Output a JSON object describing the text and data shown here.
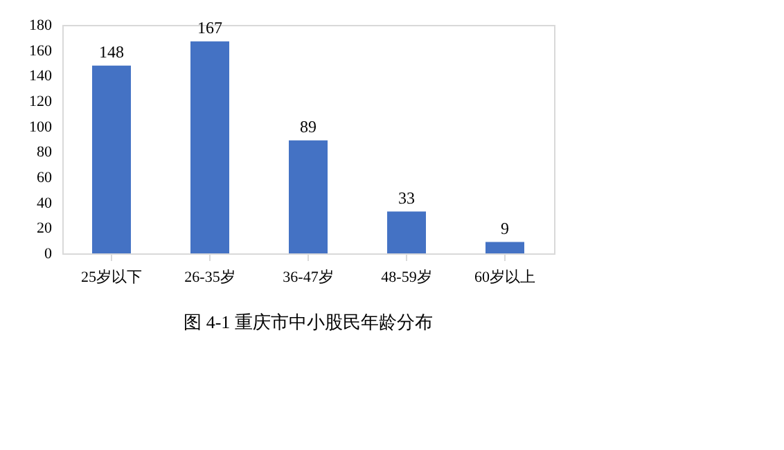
{
  "chart_data": {
    "type": "bar",
    "title": "图 4-1  重庆市中小股民年龄分布",
    "categories": [
      "25岁以下",
      "26-35岁",
      "36-47岁",
      "48-59岁",
      "60岁以上"
    ],
    "values": [
      148,
      167,
      89,
      33,
      9
    ],
    "color": "#4472c4",
    "ylim": [
      0,
      180
    ],
    "yticks": [
      0,
      20,
      40,
      60,
      80,
      100,
      120,
      140,
      160,
      180
    ],
    "grid": false,
    "data_labels": true
  }
}
